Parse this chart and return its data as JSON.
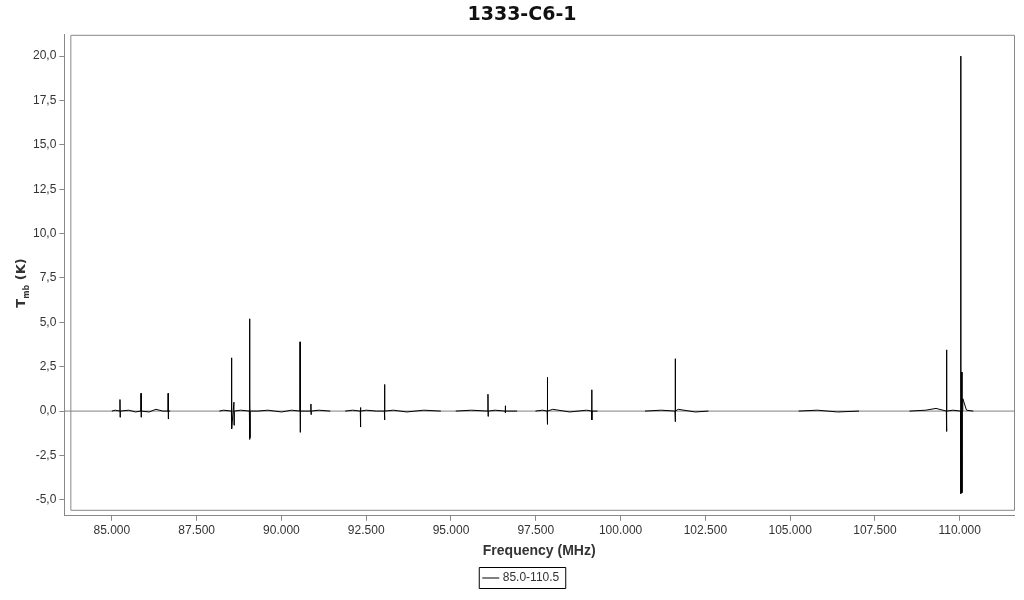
{
  "chart_data": {
    "type": "line",
    "title": "1333-C6-1",
    "xlabel": "Frequency (MHz)",
    "ylabel": "T$_{mb}$ (K)",
    "x": [
      85000,
      85100,
      85235,
      85240,
      85245,
      85250,
      85500,
      85700,
      85855,
      85860,
      85865,
      85870,
      86100,
      86300,
      86500,
      86655,
      86660,
      86665,
      86670,
      86720,
      87400,
      88170,
      88300,
      88525,
      88530,
      88535,
      88600,
      88605,
      88610,
      88800,
      89055,
      89060,
      89065,
      89070,
      89075,
      89080,
      89300,
      89600,
      90000,
      90300,
      90545,
      90550,
      90555,
      90560,
      90700,
      90865,
      90870,
      90875,
      90880,
      91100,
      91440,
      91600,
      91880,
      92100,
      92325,
      92330,
      92335,
      92340,
      92500,
      92800,
      93035,
      93040,
      93045,
      93050,
      93300,
      93700,
      94200,
      94700,
      94900,
      95140,
      95600,
      96085,
      96090,
      96095,
      96100,
      96300,
      96595,
      96600,
      96605,
      96610,
      96950,
      97200,
      97490,
      97700,
      97835,
      97840,
      97845,
      97850,
      98000,
      98500,
      99000,
      99145,
      99150,
      99155,
      99160,
      99320,
      100000,
      100720,
      101200,
      101605,
      101610,
      101615,
      101620,
      101700,
      102200,
      102590,
      104000,
      105250,
      105800,
      106400,
      107030,
      107800,
      108520,
      109000,
      109300,
      109605,
      109610,
      109615,
      109620,
      109800,
      110025,
      110030,
      110035,
      110060,
      110065,
      110070,
      110090,
      110200,
      110400
    ],
    "series": [
      {
        "name": "85.0-110.5",
        "color": "#000000",
        "values": [
          0,
          0.05,
          0,
          0.65,
          -0.35,
          0,
          0.05,
          -0.05,
          0,
          1.0,
          -0.35,
          0,
          -0.05,
          0.1,
          0,
          0,
          1.0,
          -0.45,
          0,
          0,
          null,
          0,
          0.05,
          0,
          3.0,
          -1.0,
          0.5,
          -0.8,
          0,
          0.05,
          0,
          5.2,
          -1.6,
          0.8,
          -1.5,
          0,
          0,
          0.05,
          -0.05,
          0.05,
          0,
          3.9,
          -1.2,
          0,
          0,
          0,
          0.4,
          -0.2,
          0,
          0.05,
          0,
          null,
          0,
          0.05,
          0,
          0.2,
          -0.9,
          0,
          0.05,
          0,
          0,
          1.5,
          -0.5,
          0,
          0.05,
          -0.05,
          0.05,
          0,
          null,
          0,
          0.05,
          0,
          0.95,
          -0.3,
          0,
          0.05,
          0,
          0.3,
          -0.1,
          0,
          0,
          null,
          0,
          0.05,
          0,
          1.9,
          -0.75,
          0,
          0.1,
          -0.05,
          0.05,
          0,
          1.2,
          -0.5,
          0,
          0,
          null,
          0,
          0.05,
          0,
          2.95,
          -0.6,
          0,
          0.1,
          -0.05,
          0,
          null,
          0,
          0.05,
          -0.05,
          0,
          null,
          0,
          0.05,
          0.15,
          0,
          3.45,
          -1.15,
          0,
          0.05,
          0,
          20.0,
          -4.65,
          2.2,
          -4.6,
          0,
          0.7,
          0.05,
          0
        ]
      }
    ],
    "xlim": [
      83600,
      111600
    ],
    "xticks": [
      {
        "value": 85000,
        "label": "85.000"
      },
      {
        "value": 87500,
        "label": "87.500"
      },
      {
        "value": 90000,
        "label": "90.000"
      },
      {
        "value": 92500,
        "label": "92.500"
      },
      {
        "value": 95000,
        "label": "95.000"
      },
      {
        "value": 97500,
        "label": "97.500"
      },
      {
        "value": 100000,
        "label": "100.000"
      },
      {
        "value": 102500,
        "label": "102.500"
      },
      {
        "value": 105000,
        "label": "105.000"
      },
      {
        "value": 107500,
        "label": "107.500"
      },
      {
        "value": 110000,
        "label": "110.000"
      }
    ],
    "ylim": [
      -5.9,
      21.2
    ],
    "yticks": [
      {
        "value": -5,
        "label": "-5,0"
      },
      {
        "value": -2.5,
        "label": "-2,5"
      },
      {
        "value": 0,
        "label": "0,0"
      },
      {
        "value": 2.5,
        "label": "2,5"
      },
      {
        "value": 5,
        "label": "5,0"
      },
      {
        "value": 7.5,
        "label": "7,5"
      },
      {
        "value": 10,
        "label": "10,0"
      },
      {
        "value": 12.5,
        "label": "12,5"
      },
      {
        "value": 15,
        "label": "15,0"
      },
      {
        "value": 17.5,
        "label": "17,5"
      },
      {
        "value": 20,
        "label": "20,0"
      }
    ],
    "ref_lines": [
      {
        "axis": "y",
        "value": 0,
        "color": "#808080"
      }
    ],
    "grid": false,
    "legend": "bottom",
    "marker": "none",
    "line_style": "solid"
  }
}
